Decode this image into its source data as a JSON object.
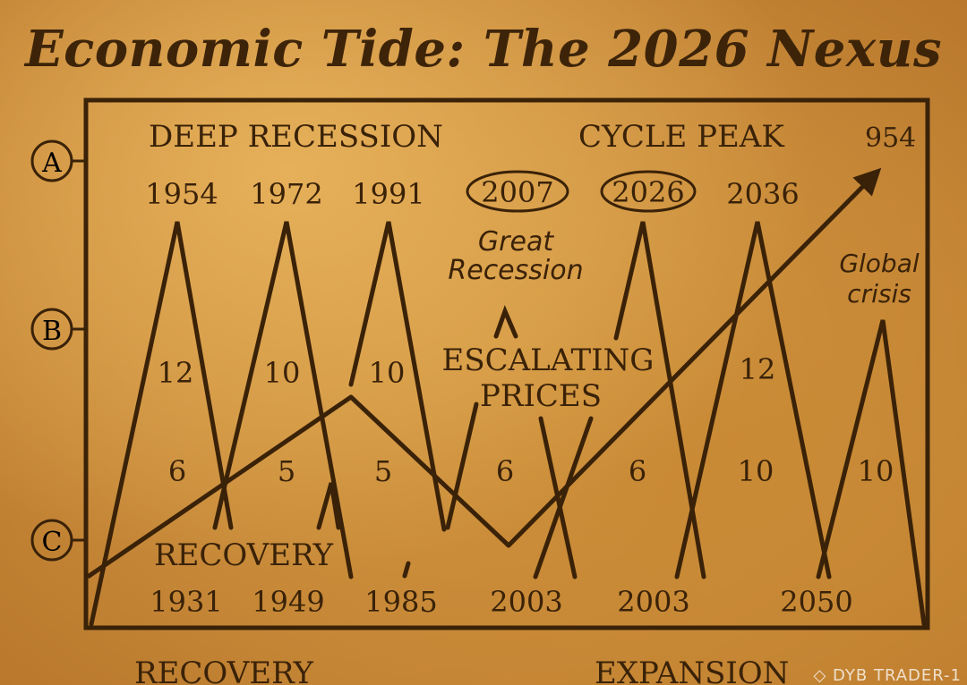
{
  "title": "Economic Tide: The 2026 Nexus",
  "row_markers": [
    "A",
    "B",
    "C"
  ],
  "header_labels": {
    "left": "DEEP RECESSION",
    "right": "CYCLE PEAK",
    "far_right": "954"
  },
  "top_years": [
    "1954",
    "1972",
    "1991",
    "2007",
    "2026",
    "2036"
  ],
  "bottom_years": [
    "1931",
    "1949",
    "1985",
    "2003",
    "2003",
    "2050"
  ],
  "upper_numbers": [
    "12",
    "10",
    "10",
    "12"
  ],
  "lower_numbers": [
    "6",
    "5",
    "5",
    "6",
    "6",
    "10",
    "10"
  ],
  "annotations": {
    "great_recession_line1": "Great",
    "great_recession_line2": "Recession",
    "escalating_line1": "ESCALATING",
    "escalating_line2": "PRICES",
    "recovery": "RECOVERY",
    "global_line1": "Global",
    "global_line2": "crisis"
  },
  "footer": {
    "left": "RECOVERY",
    "right": "EXPANSION"
  },
  "watermark": "◇ DYB TRADER-1",
  "colors": {
    "ink": "#3a2208",
    "paper": "#d9a04a"
  }
}
